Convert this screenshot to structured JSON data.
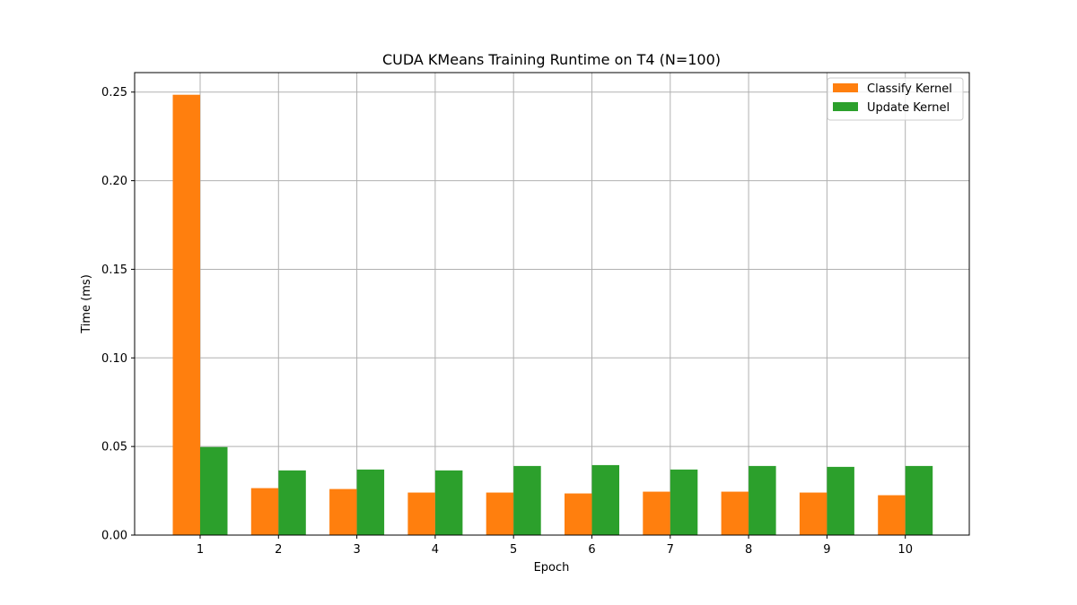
{
  "chart_data": {
    "type": "bar",
    "title": "CUDA KMeans Training Runtime on T4 (N=100)",
    "xlabel": "Epoch",
    "ylabel": "Time (ms)",
    "categories": [
      "1",
      "2",
      "3",
      "4",
      "5",
      "6",
      "7",
      "8",
      "9",
      "10"
    ],
    "series": [
      {
        "name": "Classify Kernel",
        "color": "#ff7f0e",
        "values": [
          0.2485,
          0.0265,
          0.026,
          0.024,
          0.024,
          0.0235,
          0.0245,
          0.0245,
          0.024,
          0.0225
        ]
      },
      {
        "name": "Update Kernel",
        "color": "#2ca02c",
        "values": [
          0.0497,
          0.0365,
          0.037,
          0.0365,
          0.039,
          0.0395,
          0.037,
          0.039,
          0.0385,
          0.039
        ]
      }
    ],
    "yticks": [
      "0.00",
      "0.05",
      "0.10",
      "0.15",
      "0.20",
      "0.25"
    ],
    "ytick_values": [
      0,
      0.05,
      0.1,
      0.15,
      0.2,
      0.25
    ],
    "ylim": [
      0,
      0.261
    ],
    "grid": true,
    "legend_position": "top-right"
  }
}
